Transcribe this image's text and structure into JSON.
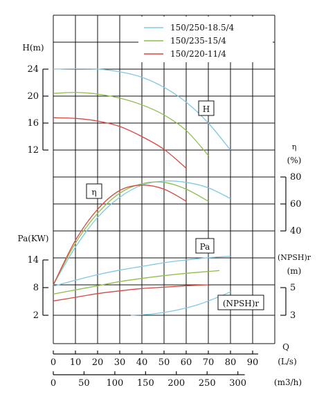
{
  "chart_data": {
    "type": "line",
    "legend": {
      "placement": "top-right",
      "entries": [
        {
          "name": "150/250-18.5/4",
          "color": "#7ec8e6"
        },
        {
          "name": "150/235-15/4",
          "color": "#8cbf4a"
        },
        {
          "name": "150/220-11/4",
          "color": "#d9473f"
        }
      ]
    },
    "x_axis": {
      "label": "Q",
      "flow_ls": {
        "unit": "(L/s)",
        "ticks": [
          "0",
          "10",
          "20",
          "30",
          "40",
          "50",
          "60",
          "70",
          "80",
          "90"
        ],
        "range": [
          0,
          100
        ]
      },
      "flow_m3h": {
        "unit": "(m3/h)",
        "ticks": [
          "0",
          "50",
          "100",
          "150",
          "200",
          "250",
          "300"
        ]
      }
    },
    "panels": [
      {
        "id": "head",
        "tag": "H",
        "axis_label": "H(m)",
        "ticks": [
          "24",
          "20",
          "16",
          "12"
        ],
        "range": [
          8,
          26
        ],
        "series": [
          {
            "color": "#7ec8e6",
            "x": [
              0,
              10,
              20,
              30,
              40,
              50,
              60,
              70,
              80
            ],
            "y": [
              24,
              24.05,
              24,
              23.6,
              22.8,
              21.3,
              19.1,
              16.0,
              12.0
            ]
          },
          {
            "color": "#8cbf4a",
            "x": [
              0,
              10,
              20,
              30,
              40,
              50,
              60,
              70
            ],
            "y": [
              20.4,
              20.55,
              20.3,
              19.7,
              18.7,
              17.2,
              14.9,
              11.2
            ]
          },
          {
            "color": "#d9473f",
            "x": [
              0,
              10,
              20,
              30,
              40,
              50,
              60
            ],
            "y": [
              16.8,
              16.7,
              16.3,
              15.5,
              14.0,
              12.1,
              9.3
            ]
          }
        ]
      },
      {
        "id": "efficiency",
        "tag": "η",
        "axis_label": "η",
        "axis_unit": "(%)",
        "ticks": [
          "80",
          "60",
          "40"
        ],
        "range": [
          20,
          80
        ],
        "series": [
          {
            "color": "#7ec8e6",
            "x": [
              0,
              10,
              20,
              30,
              40,
              50,
              60,
              70,
              80
            ],
            "y": [
              0,
              28,
              50,
              65,
              74,
              77,
              76,
              72,
              64
            ]
          },
          {
            "color": "#8cbf4a",
            "x": [
              0,
              10,
              20,
              30,
              40,
              50,
              60,
              70
            ],
            "y": [
              0,
              31,
              53,
              68,
              75,
              76,
              71,
              62
            ]
          },
          {
            "color": "#d9473f",
            "x": [
              0,
              10,
              20,
              30,
              40,
              50,
              60
            ],
            "y": [
              0,
              33,
              56,
              70,
              74,
              71,
              62
            ]
          }
        ]
      },
      {
        "id": "power",
        "tag": "Pa",
        "axis_label": "Pa(KW)",
        "ticks": [
          "14",
          "8",
          "2"
        ],
        "range": [
          0,
          14
        ],
        "series": [
          {
            "color": "#7ec8e6",
            "x": [
              0,
              10,
              20,
              30,
              40,
              50,
              60,
              70,
              80
            ],
            "y": [
              8.3,
              9.6,
              10.8,
              11.8,
              12.6,
              13.4,
              14.0,
              14.5,
              14.8
            ]
          },
          {
            "color": "#8cbf4a",
            "x": [
              0,
              10,
              20,
              30,
              40,
              50,
              60,
              70,
              75
            ],
            "y": [
              6.6,
              7.5,
              8.4,
              9.3,
              10.0,
              10.6,
              11.1,
              11.5,
              11.7
            ]
          },
          {
            "color": "#d9473f",
            "x": [
              0,
              10,
              20,
              30,
              40,
              50,
              60,
              70
            ],
            "y": [
              5.1,
              5.9,
              6.7,
              7.3,
              7.8,
              8.1,
              8.4,
              8.6
            ]
          }
        ]
      },
      {
        "id": "npsh",
        "tag": "(NPSH)r",
        "axis_label": "(NPSH)r",
        "axis_unit": "(m)",
        "ticks": [
          "5",
          "3"
        ],
        "range": [
          2,
          6
        ],
        "series": [
          {
            "color": "#7ec8e6",
            "x": [
              35,
              45,
              55,
              65,
              75,
              80
            ],
            "y": [
              3.0,
              3.1,
              3.35,
              3.75,
              4.35,
              4.7
            ]
          }
        ]
      }
    ]
  }
}
